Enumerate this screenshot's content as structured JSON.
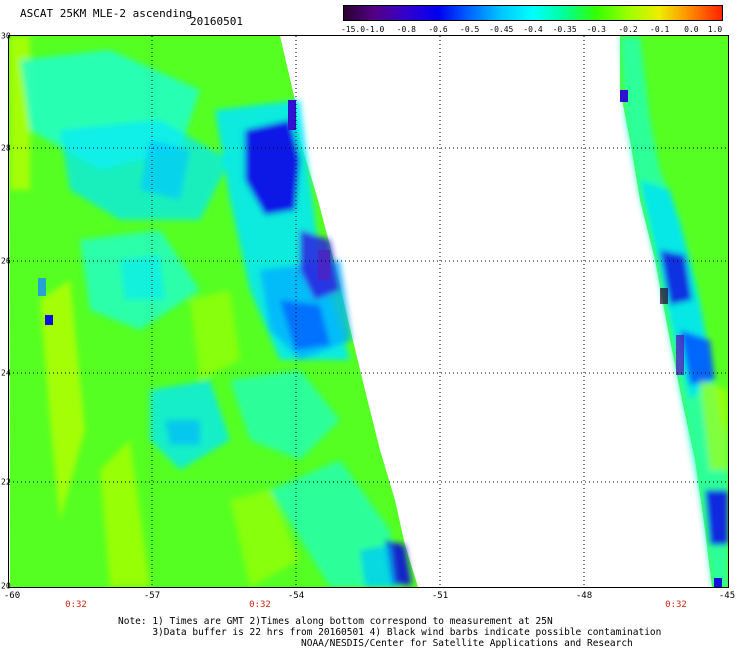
{
  "header": {
    "title": "ASCAT 25KM MLE-2 ascending",
    "date": "20160501"
  },
  "colorbar": {
    "labels": [
      "-15.0",
      "-1.0",
      "-0.8",
      "-0.6",
      "-0.5",
      "-0.45",
      "-0.4",
      "-0.35",
      "-0.3",
      "-0.2",
      "-0.1",
      "0.0",
      "1.0"
    ],
    "colors": [
      "#2a0030",
      "#550088",
      "#3300d0",
      "#0000f0",
      "#0066ff",
      "#00c8ff",
      "#00ffff",
      "#00ff99",
      "#33ff00",
      "#99ff00",
      "#eeee00",
      "#ff8800",
      "#ff2200"
    ]
  },
  "map": {
    "lat_labels": [
      "30",
      "28",
      "26",
      "24",
      "22",
      "20"
    ],
    "lon_labels": [
      "-60",
      "-57",
      "-54",
      "-51",
      "-48",
      "-45"
    ],
    "time_labels": [
      "0:32",
      "0:32",
      "0:32"
    ]
  },
  "notes": {
    "line1": "Note: 1) Times are GMT 2)Times along bottom correspond to measurement at 25N",
    "line2": "      3)Data buffer is 22 hrs from 20160501 4) Black wind barbs indicate possible contamination",
    "line3": "                                NOAA/NESDIS/Center for Satellite Applications and Research"
  }
}
